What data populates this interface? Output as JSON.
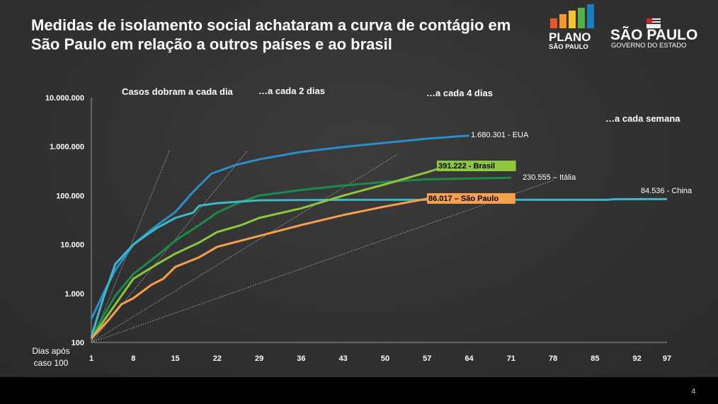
{
  "title": "Medidas de isolamento social achataram a curva de contágio em São Paulo em relação a outros países e ao brasil",
  "page_number": "4",
  "logos": {
    "plano": "PLANO SÃO PAULO",
    "governo": "SÃO PAULO GOVERNO DO ESTADO"
  },
  "chart_data": {
    "type": "line",
    "xlabel": "Dias após caso 100",
    "x_ticks": [
      1,
      8,
      15,
      22,
      29,
      36,
      43,
      50,
      57,
      64,
      71,
      78,
      85,
      92,
      97
    ],
    "y_scale": "log",
    "ylim": [
      100,
      10000000
    ],
    "y_ticks": [
      {
        "v": 100,
        "label": "100"
      },
      {
        "v": 1000,
        "label": "1.000"
      },
      {
        "v": 10000,
        "label": "10.000"
      },
      {
        "v": 100000,
        "label": "100.000"
      },
      {
        "v": 1000000,
        "label": "1.000.000"
      },
      {
        "v": 10000000,
        "label": "10.000.000"
      }
    ],
    "grid": false,
    "series": [
      {
        "name": "EUA",
        "label": "1.680.301 - EUA",
        "color": "#2a8fc9",
        "x": [
          1,
          3,
          5,
          8,
          10,
          12,
          15,
          18,
          21,
          25,
          29,
          36,
          43,
          50,
          57,
          64
        ],
        "y": [
          300,
          1000,
          3000,
          10000,
          16000,
          25000,
          46000,
          120000,
          280000,
          420000,
          550000,
          780000,
          980000,
          1200000,
          1450000,
          1680301
        ]
      },
      {
        "name": "China",
        "label": "84.536 - China",
        "color": "#3cb8c8",
        "x": [
          1,
          3,
          5,
          8,
          10,
          12,
          15,
          18,
          19,
          22,
          29,
          43,
          57,
          87,
          88,
          97
        ],
        "y": [
          130,
          800,
          4000,
          10000,
          15000,
          22000,
          35000,
          45000,
          62000,
          70000,
          80000,
          82000,
          82000,
          82000,
          84000,
          84536
        ]
      },
      {
        "name": "Itália",
        "label": "230.555 – Itália",
        "color": "#1e8a4a",
        "x": [
          1,
          5,
          8,
          12,
          15,
          19,
          22,
          26,
          29,
          36,
          43,
          50,
          57,
          71
        ],
        "y": [
          130,
          900,
          2500,
          6000,
          12000,
          25000,
          45000,
          75000,
          100000,
          130000,
          160000,
          190000,
          215000,
          230555
        ]
      },
      {
        "name": "Brasil",
        "label": "391.222 - Brasil",
        "color": "#8dc63f",
        "x": [
          1,
          4,
          8,
          12,
          15,
          19,
          22,
          26,
          29,
          36,
          43,
          50,
          57,
          60
        ],
        "y": [
          120,
          400,
          2000,
          4000,
          6500,
          11000,
          18000,
          25000,
          35000,
          55000,
          100000,
          170000,
          300000,
          391222
        ]
      },
      {
        "name": "São Paulo",
        "label": "86.017 – São Paulo",
        "color": "#f7a04b",
        "x": [
          1,
          4,
          6,
          8,
          11,
          13,
          15,
          19,
          22,
          26,
          29,
          36,
          43,
          50,
          57
        ],
        "y": [
          120,
          300,
          600,
          800,
          1500,
          2000,
          3500,
          5500,
          9000,
          12000,
          15000,
          25000,
          40000,
          60000,
          86017
        ]
      }
    ],
    "guides": [
      {
        "label": "Casos dobram a cada dia",
        "doubling_days": 1
      },
      {
        "label": "…a cada 2 dias",
        "doubling_days": 2
      },
      {
        "label": "…a cada 4 dias",
        "doubling_days": 4
      },
      {
        "label": "…a cada semana",
        "doubling_days": 7
      }
    ]
  }
}
